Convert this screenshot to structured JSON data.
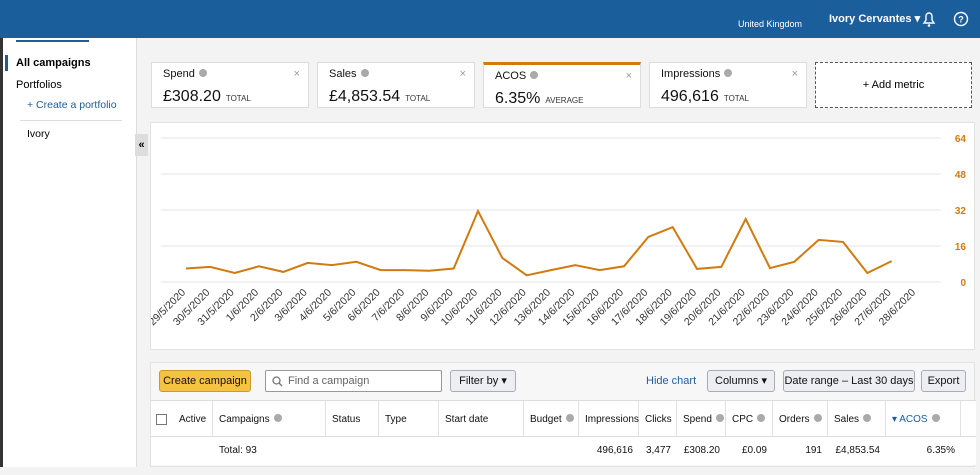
{
  "header": {
    "region": "United Kingdom",
    "user": "Ivory Cervantes"
  },
  "sidebar": {
    "items": [
      "All campaigns",
      "Portfolios",
      "+ Create a portfolio",
      "Ivory"
    ]
  },
  "metrics": [
    {
      "label": "Spend",
      "value": "£308.20",
      "note": "TOTAL"
    },
    {
      "label": "Sales",
      "value": "£4,853.54",
      "note": "TOTAL"
    },
    {
      "label": "ACOS",
      "value": "6.35%",
      "note": "AVERAGE"
    },
    {
      "label": "Impressions",
      "value": "496,616",
      "note": "TOTAL"
    }
  ],
  "add_metric": "+ Add metric",
  "chart_data": {
    "type": "line",
    "x": [
      "29/5/2020",
      "30/5/2020",
      "31/5/2020",
      "1/6/2020",
      "2/6/2020",
      "3/6/2020",
      "4/6/2020",
      "5/6/2020",
      "6/6/2020",
      "7/6/2020",
      "8/6/2020",
      "9/6/2020",
      "10/6/2020",
      "11/6/2020",
      "12/6/2020",
      "13/6/2020",
      "14/6/2020",
      "15/6/2020",
      "16/6/2020",
      "17/6/2020",
      "18/6/2020",
      "19/6/2020",
      "20/6/2020",
      "21/6/2020",
      "22/6/2020",
      "23/6/2020",
      "24/6/2020",
      "25/6/2020",
      "26/6/2020",
      "27/6/2020",
      "28/6/2020"
    ],
    "series": [
      {
        "color": "#d17a0f",
        "values": [
          6,
          6.7,
          4,
          7,
          4.5,
          8.5,
          7.5,
          9,
          5.3,
          5.3,
          5,
          6,
          31.5,
          10.7,
          3,
          5.3,
          7.5,
          5.3,
          7,
          20,
          24.4,
          5.8,
          6.7,
          28,
          6.2,
          9,
          18.7,
          17.8,
          4,
          9.3,
          null
        ]
      }
    ],
    "ylim": [
      0,
      64
    ],
    "yticks": [
      0,
      16,
      32,
      48,
      64
    ],
    "yaxis_position": "right",
    "grid": true
  },
  "toolbar": {
    "create": "Create campaign",
    "search": "Find a campaign",
    "filter": "Filter by",
    "hide": "Hide chart",
    "columns": "Columns",
    "date_range": "Date range – Last 30 days",
    "export": "Export"
  },
  "table": {
    "columns": [
      "Active",
      "Campaigns",
      "Status",
      "Type",
      "Start date",
      "Budget",
      "Impressions",
      "Clicks",
      "Spend",
      "CPC",
      "Orders",
      "Sales",
      "ACOS"
    ],
    "total": {
      "campaigns": "Total: 93",
      "impressions": "496,616",
      "clicks": "3,477",
      "spend": "£308.20",
      "cpc": "£0.09",
      "orders": "191",
      "sales": "£4,853.54",
      "acos": "6.35%"
    }
  }
}
